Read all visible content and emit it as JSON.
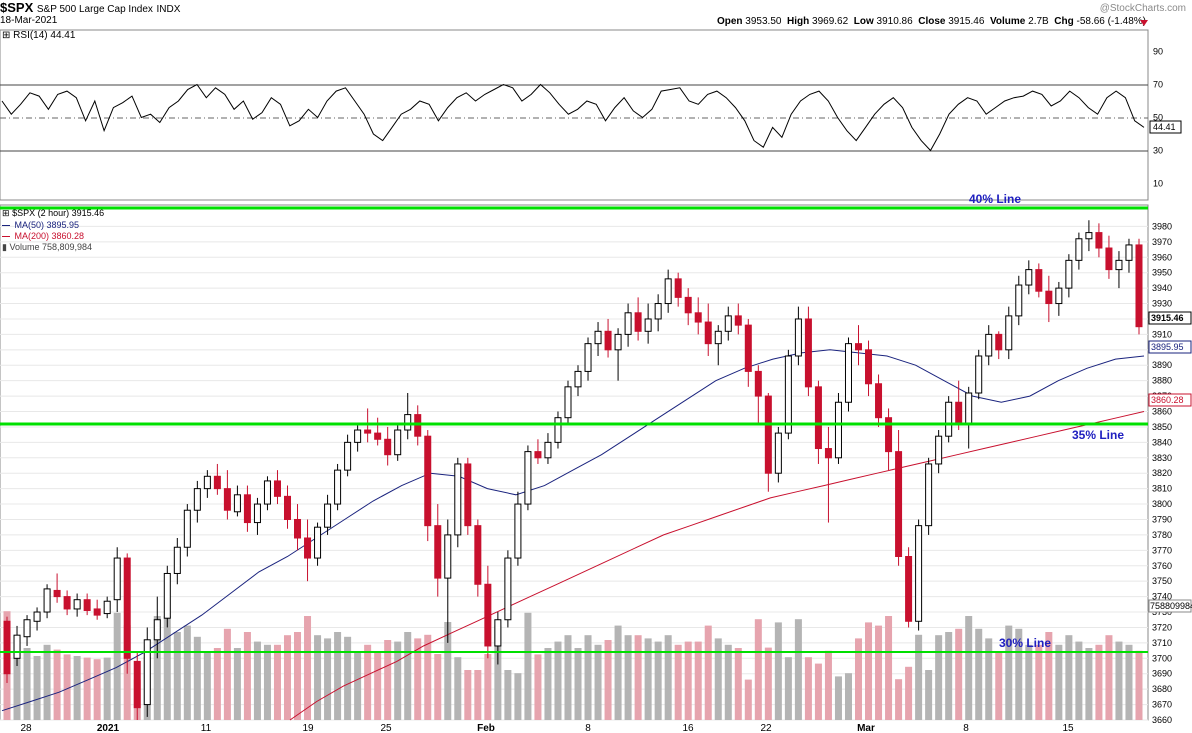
{
  "header": {
    "symbol": "$SPX",
    "name": "S&P 500 Large Cap Index",
    "exchange": "INDX",
    "date": "18-Mar-2021",
    "open_label": "Open",
    "open": "3953.50",
    "high_label": "High",
    "high": "3969.62",
    "low_label": "Low",
    "low": "3910.86",
    "close_label": "Close",
    "close": "3915.46",
    "volume_label": "Volume",
    "volume": "2.7B",
    "chg_label": "Chg",
    "chg": "-58.66 (-1.48%)",
    "watermark": "@StockCharts.com"
  },
  "rsi_panel": {
    "label": "RSI(14) 44.41",
    "value": 44.41,
    "value_label": "44.41",
    "ticks": [
      "90",
      "70",
      "50",
      "30",
      "10"
    ],
    "tick_values": [
      90,
      70,
      50,
      30,
      10
    ]
  },
  "legend": {
    "price": "$SPX (2 hour) 3915.46",
    "ma50": "MA(50) 3895.95",
    "ma200": "MA(200) 3860.28",
    "volume": "Volume 758,809,984"
  },
  "price_axis": {
    "ticks": [
      "3980",
      "3970",
      "3960",
      "3950",
      "3940",
      "3930",
      "3920",
      "3910",
      "3900",
      "3890",
      "3880",
      "3870",
      "3860",
      "3850",
      "3840",
      "3830",
      "3820",
      "3810",
      "3800",
      "3790",
      "3780",
      "3770",
      "3760",
      "3750",
      "3740",
      "3730",
      "3720",
      "3710",
      "3700",
      "3690",
      "3680",
      "3670",
      "3660"
    ],
    "last_price_label": "3915.46",
    "ma50_label": "3895.95",
    "ma200_label": "3860.28",
    "volume_label": "758809984"
  },
  "annotations": {
    "line_40": "40% Line",
    "line_35": "35% Line",
    "line_30": "30% Line"
  },
  "x_axis": {
    "labels": [
      "28",
      "2021",
      "11",
      "19",
      "25",
      "Feb",
      "8",
      "16",
      "22",
      "Mar",
      "8",
      "15"
    ]
  },
  "colors": {
    "up": "#000000",
    "down": "#c8102e",
    "ma50": "#1a237e",
    "ma200": "#c8102e",
    "horizontal_lines": "#00e000",
    "annotation_text": "#2020c0",
    "volume_up": "#b4b4b4",
    "volume_down": "#e6a4ae"
  },
  "chart_data": {
    "type": "candlestick",
    "title": "$SPX S&P 500 Large Cap Index",
    "interval": "2 hour",
    "ylim": [
      3660,
      3990
    ],
    "horizontal_lines": [
      {
        "name": "40% Line",
        "y": 3987
      },
      {
        "name": "35% Line",
        "y": 3845
      },
      {
        "name": "30% Line",
        "y": 3700
      }
    ],
    "rsi": {
      "period": 14,
      "last": 44.41,
      "ylim": [
        0,
        100
      ],
      "values": [
        60,
        52,
        58,
        65,
        63,
        55,
        64,
        66,
        62,
        48,
        60,
        42,
        56,
        59,
        63,
        50,
        52,
        47,
        56,
        60,
        67,
        70,
        62,
        68,
        64,
        55,
        60,
        49,
        53,
        62,
        58,
        45,
        48,
        55,
        50,
        60,
        66,
        68,
        60,
        52,
        40,
        36,
        44,
        52,
        55,
        60,
        58,
        48,
        56,
        62,
        65,
        60,
        64,
        67,
        70,
        68,
        60,
        64,
        70,
        65,
        58,
        52,
        55,
        60,
        58,
        48,
        56,
        62,
        54,
        50,
        55,
        66,
        67,
        68,
        60,
        58,
        64,
        66,
        62,
        56,
        48,
        36,
        32,
        44,
        38,
        52,
        60,
        64,
        66,
        60,
        50,
        42,
        36,
        44,
        52,
        58,
        62,
        56,
        44,
        36,
        30,
        40,
        52,
        58,
        62,
        60,
        52,
        56,
        60,
        62,
        63,
        66,
        64,
        57,
        60,
        66,
        62,
        56,
        52,
        62,
        66,
        62,
        48,
        44
      ]
    },
    "candles": [
      [
        3724,
        3727,
        3684,
        3690
      ],
      [
        3700,
        3721,
        3695,
        3715
      ],
      [
        3714,
        3728,
        3708,
        3725
      ],
      [
        3724,
        3733,
        3718,
        3730
      ],
      [
        3730,
        3748,
        3726,
        3745
      ],
      [
        3744,
        3755,
        3736,
        3740
      ],
      [
        3740,
        3744,
        3728,
        3732
      ],
      [
        3732,
        3742,
        3727,
        3738
      ],
      [
        3738,
        3742,
        3728,
        3731
      ],
      [
        3732,
        3738,
        3725,
        3728
      ],
      [
        3729,
        3740,
        3726,
        3737
      ],
      [
        3738,
        3772,
        3730,
        3765
      ],
      [
        3765,
        3768,
        3690,
        3700
      ],
      [
        3698,
        3704,
        3660,
        3668
      ],
      [
        3670,
        3720,
        3662,
        3712
      ],
      [
        3712,
        3740,
        3700,
        3725
      ],
      [
        3726,
        3760,
        3720,
        3755
      ],
      [
        3755,
        3778,
        3748,
        3772
      ],
      [
        3772,
        3800,
        3766,
        3796
      ],
      [
        3796,
        3815,
        3788,
        3810
      ],
      [
        3810,
        3822,
        3804,
        3818
      ],
      [
        3818,
        3826,
        3806,
        3810
      ],
      [
        3810,
        3822,
        3790,
        3796
      ],
      [
        3795,
        3812,
        3792,
        3806
      ],
      [
        3806,
        3812,
        3782,
        3788
      ],
      [
        3788,
        3804,
        3780,
        3800
      ],
      [
        3800,
        3818,
        3796,
        3815
      ],
      [
        3815,
        3822,
        3800,
        3805
      ],
      [
        3805,
        3812,
        3784,
        3790
      ],
      [
        3790,
        3800,
        3770,
        3778
      ],
      [
        3778,
        3790,
        3750,
        3765
      ],
      [
        3765,
        3788,
        3760,
        3785
      ],
      [
        3785,
        3806,
        3780,
        3800
      ],
      [
        3800,
        3826,
        3796,
        3822
      ],
      [
        3822,
        3845,
        3818,
        3840
      ],
      [
        3840,
        3852,
        3834,
        3848
      ],
      [
        3848,
        3862,
        3840,
        3846
      ],
      [
        3846,
        3856,
        3838,
        3842
      ],
      [
        3842,
        3850,
        3825,
        3832
      ],
      [
        3832,
        3852,
        3828,
        3848
      ],
      [
        3848,
        3872,
        3842,
        3858
      ],
      [
        3858,
        3864,
        3838,
        3844
      ],
      [
        3844,
        3848,
        3776,
        3786
      ],
      [
        3786,
        3800,
        3740,
        3752
      ],
      [
        3752,
        3790,
        3710,
        3780
      ],
      [
        3780,
        3830,
        3772,
        3826
      ],
      [
        3826,
        3830,
        3780,
        3786
      ],
      [
        3786,
        3790,
        3740,
        3748
      ],
      [
        3748,
        3760,
        3700,
        3708
      ],
      [
        3708,
        3730,
        3696,
        3725
      ],
      [
        3725,
        3770,
        3720,
        3765
      ],
      [
        3765,
        3808,
        3760,
        3800
      ],
      [
        3800,
        3838,
        3796,
        3834
      ],
      [
        3834,
        3842,
        3826,
        3830
      ],
      [
        3830,
        3846,
        3826,
        3840
      ],
      [
        3840,
        3860,
        3836,
        3856
      ],
      [
        3856,
        3880,
        3852,
        3876
      ],
      [
        3876,
        3890,
        3870,
        3886
      ],
      [
        3886,
        3908,
        3880,
        3904
      ],
      [
        3904,
        3918,
        3896,
        3912
      ],
      [
        3912,
        3920,
        3895,
        3900
      ],
      [
        3900,
        3914,
        3880,
        3910
      ],
      [
        3910,
        3930,
        3902,
        3924
      ],
      [
        3924,
        3934,
        3906,
        3912
      ],
      [
        3912,
        3930,
        3904,
        3920
      ],
      [
        3920,
        3936,
        3912,
        3930
      ],
      [
        3930,
        3952,
        3924,
        3946
      ],
      [
        3946,
        3950,
        3928,
        3934
      ],
      [
        3934,
        3940,
        3916,
        3924
      ],
      [
        3924,
        3934,
        3910,
        3918
      ],
      [
        3918,
        3930,
        3896,
        3904
      ],
      [
        3904,
        3916,
        3890,
        3912
      ],
      [
        3912,
        3928,
        3906,
        3922
      ],
      [
        3922,
        3930,
        3910,
        3916
      ],
      [
        3916,
        3920,
        3876,
        3886
      ],
      [
        3886,
        3890,
        3852,
        3870
      ],
      [
        3870,
        3872,
        3808,
        3820
      ],
      [
        3820,
        3850,
        3814,
        3846
      ],
      [
        3846,
        3900,
        3842,
        3896
      ],
      [
        3896,
        3928,
        3890,
        3920
      ],
      [
        3920,
        3928,
        3870,
        3876
      ],
      [
        3876,
        3880,
        3826,
        3836
      ],
      [
        3836,
        3850,
        3788,
        3830
      ],
      [
        3830,
        3872,
        3826,
        3866
      ],
      [
        3866,
        3908,
        3860,
        3904
      ],
      [
        3904,
        3916,
        3890,
        3900
      ],
      [
        3900,
        3906,
        3870,
        3878
      ],
      [
        3878,
        3884,
        3850,
        3856
      ],
      [
        3856,
        3862,
        3822,
        3834
      ],
      [
        3834,
        3848,
        3760,
        3766
      ],
      [
        3766,
        3772,
        3720,
        3724
      ],
      [
        3724,
        3790,
        3718,
        3786
      ],
      [
        3786,
        3830,
        3780,
        3826
      ],
      [
        3826,
        3848,
        3820,
        3844
      ],
      [
        3844,
        3870,
        3840,
        3866
      ],
      [
        3866,
        3880,
        3848,
        3852
      ],
      [
        3852,
        3876,
        3836,
        3872
      ],
      [
        3872,
        3900,
        3868,
        3896
      ],
      [
        3896,
        3916,
        3890,
        3910
      ],
      [
        3910,
        3912,
        3894,
        3900
      ],
      [
        3900,
        3928,
        3894,
        3922
      ],
      [
        3922,
        3948,
        3916,
        3942
      ],
      [
        3942,
        3958,
        3936,
        3952
      ],
      [
        3952,
        3956,
        3934,
        3938
      ],
      [
        3938,
        3948,
        3918,
        3930
      ],
      [
        3930,
        3944,
        3922,
        3940
      ],
      [
        3940,
        3962,
        3934,
        3958
      ],
      [
        3958,
        3976,
        3952,
        3972
      ],
      [
        3972,
        3984,
        3964,
        3976
      ],
      [
        3976,
        3982,
        3960,
        3966
      ],
      [
        3966,
        3974,
        3946,
        3952
      ],
      [
        3952,
        3964,
        3940,
        3958
      ],
      [
        3958,
        3972,
        3950,
        3968
      ],
      [
        3968,
        3972,
        3910,
        3915
      ]
    ],
    "ma50": [
      3666,
      3672,
      3678,
      3686,
      3694,
      3704,
      3716,
      3728,
      3742,
      3756,
      3766,
      3778,
      3790,
      3802,
      3812,
      3820,
      3818,
      3810,
      3806,
      3812,
      3822,
      3832,
      3844,
      3856,
      3868,
      3880,
      3888,
      3894,
      3898,
      3900,
      3898,
      3896,
      3890,
      3880,
      3870,
      3866,
      3870,
      3880,
      3888,
      3894,
      3896
    ],
    "ma200": [
      3660,
      3672,
      3682,
      3690,
      3698,
      3708,
      3716,
      3724,
      3732,
      3740,
      3748,
      3756,
      3764,
      3772,
      3780,
      3786,
      3792,
      3798,
      3804,
      3808,
      3812,
      3816,
      3820,
      3824,
      3828,
      3832,
      3836,
      3840,
      3844,
      3848,
      3852,
      3856,
      3860
    ],
    "volume_last": 758809984
  }
}
